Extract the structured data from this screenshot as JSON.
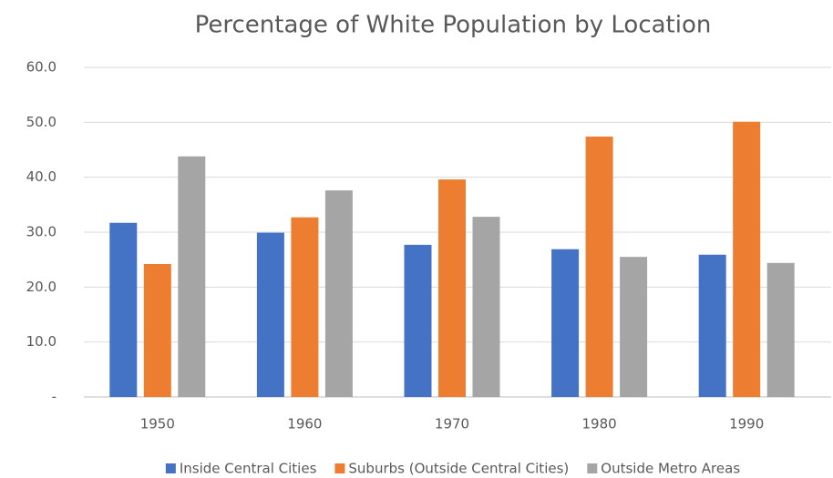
{
  "chart_data": {
    "type": "bar",
    "title": "Percentage of White Population by Location",
    "categories": [
      "1950",
      "1960",
      "1970",
      "1980",
      "1990"
    ],
    "series": [
      {
        "name": "Inside Central Cities",
        "color": "#4472c4",
        "values": [
          31.7,
          29.9,
          27.7,
          26.9,
          25.9
        ]
      },
      {
        "name": "Suburbs (Outside Central Cities)",
        "color": "#ed7d31",
        "values": [
          24.2,
          32.7,
          39.6,
          47.4,
          50.1
        ]
      },
      {
        "name": "Outside Metro Areas",
        "color": "#a5a5a5",
        "values": [
          43.8,
          37.6,
          32.8,
          25.5,
          24.4
        ]
      }
    ],
    "ylim": [
      0,
      60
    ],
    "yticks": [
      {
        "value": 0,
        "label": "-"
      },
      {
        "value": 10,
        "label": "10.0"
      },
      {
        "value": 20,
        "label": "20.0"
      },
      {
        "value": 30,
        "label": "30.0"
      },
      {
        "value": 40,
        "label": "40.0"
      },
      {
        "value": 50,
        "label": "50.0"
      },
      {
        "value": 60,
        "label": "60.0"
      }
    ],
    "grid": true,
    "legend": "bottom"
  }
}
